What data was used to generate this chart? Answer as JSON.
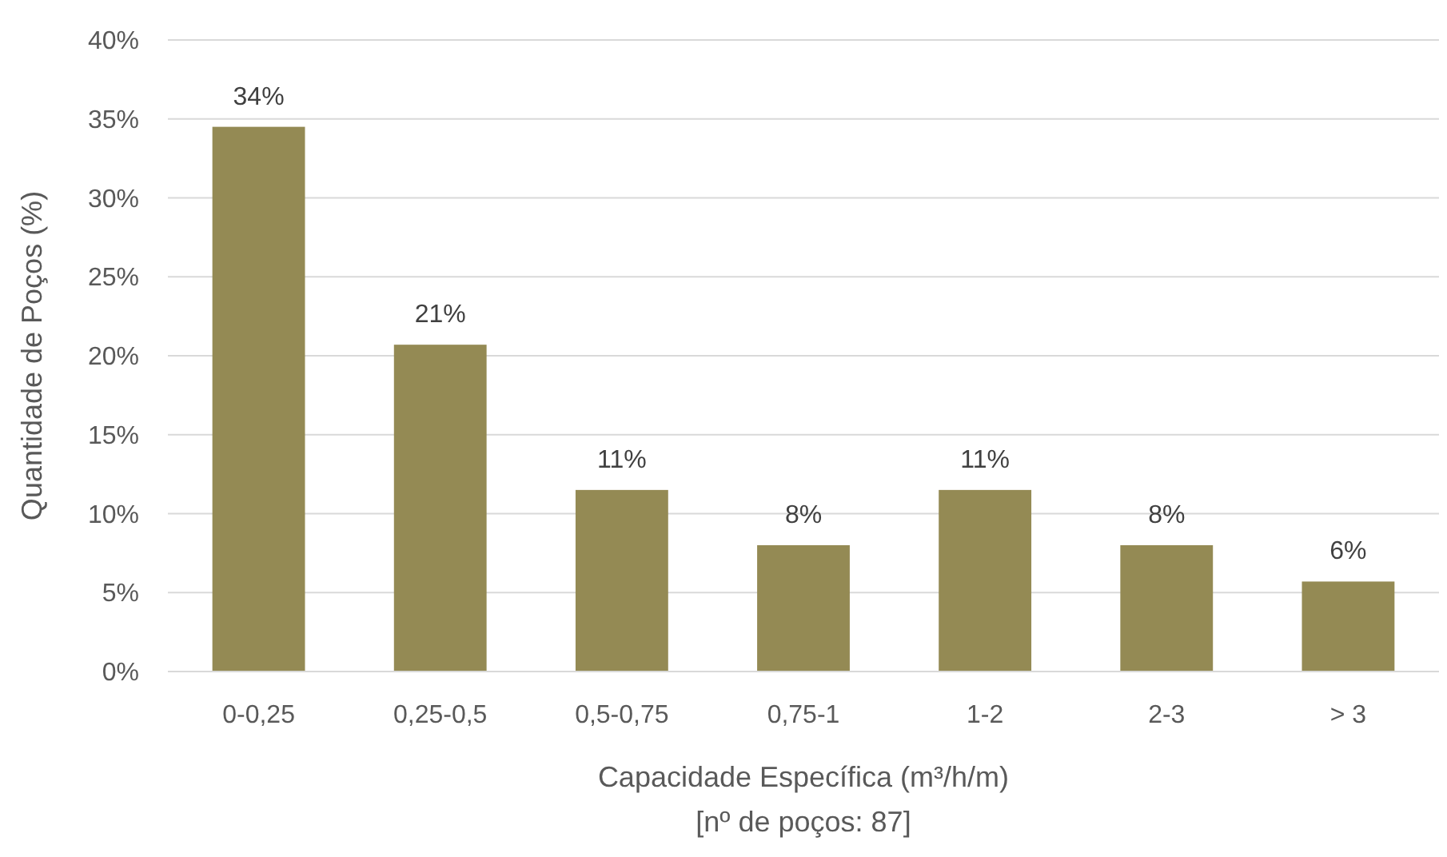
{
  "chart_data": {
    "type": "bar",
    "xlabel": "Capacidade Específica (m³/h/m)",
    "ylabel": "Quantidade de Poços (%)",
    "annotations": [
      "[nº de poços: 87]"
    ],
    "categories": [
      "0-0,25",
      "0,25-0,5",
      "0,5-0,75",
      "0,75-1",
      "1-2",
      "2-3",
      "> 3"
    ],
    "values": [
      34.5,
      20.7,
      11.5,
      8.0,
      11.5,
      8.0,
      5.7
    ],
    "value_labels": [
      "34%",
      "21%",
      "11%",
      "8%",
      "11%",
      "8%",
      "6%"
    ],
    "color": "#948a54",
    "ylim": [
      0,
      40
    ],
    "yticks": [
      {
        "value": 0,
        "label": "0%"
      },
      {
        "value": 5,
        "label": "5%"
      },
      {
        "value": 10,
        "label": "10%"
      },
      {
        "value": 15,
        "label": "15%"
      },
      {
        "value": 20,
        "label": "20%"
      },
      {
        "value": 25,
        "label": "25%"
      },
      {
        "value": 30,
        "label": "30%"
      },
      {
        "value": 35,
        "label": "35%"
      },
      {
        "value": 40,
        "label": "40%"
      }
    ],
    "grid": "y"
  }
}
